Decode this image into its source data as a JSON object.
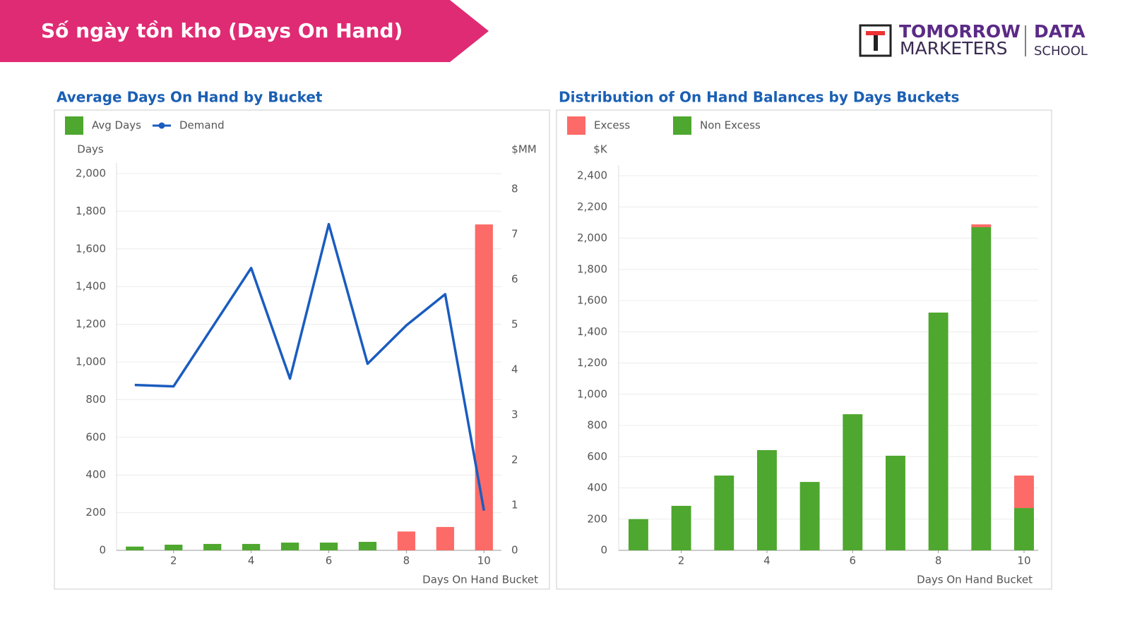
{
  "header": {
    "title": "Số ngày tồn kho (Days On Hand)",
    "logo": [
      "TOMORROW",
      "MARKETERS",
      "DATA",
      "SCHOOL"
    ]
  },
  "chart_data": [
    {
      "type": "combo",
      "title": "Average Days On Hand by Bucket",
      "y_label": "Days",
      "y2_label": "$MM",
      "x_label": "Days On Hand Bucket",
      "x": [
        1,
        2,
        3,
        4,
        5,
        6,
        7,
        8,
        9,
        10
      ],
      "xlim": [
        0.53,
        10.45
      ],
      "xticks": [
        2,
        4,
        6,
        8,
        10
      ],
      "ylim": [
        0,
        2000
      ],
      "yticks": [
        0,
        200,
        400,
        600,
        800,
        {
          "value": 1000,
          "label": "1,000"
        },
        {
          "value": 1200,
          "label": "1,200"
        },
        {
          "value": 1400,
          "label": "1,400"
        },
        {
          "value": 1600,
          "label": "1,600"
        },
        {
          "value": 1800,
          "label": "1,800"
        },
        {
          "value": 2000,
          "label": "2,000"
        }
      ],
      "y2lim": [
        0,
        8.34
      ],
      "y2ticks": [
        0,
        1,
        2,
        3,
        4,
        5,
        6,
        7,
        8
      ],
      "grid": true,
      "series": [
        {
          "name": "Avg Days",
          "type": "bar",
          "color": "#4ea72e",
          "colors": [
            "#4ea72e",
            "#4ea72e",
            "#4ea72e",
            "#4ea72e",
            "#4ea72e",
            "#4ea72e",
            "#4ea72e",
            "#fc6b67",
            "#fc6b67",
            "#fc6b67"
          ],
          "values": [
            20,
            30,
            34,
            34,
            41,
            41,
            45,
            100,
            124,
            1730
          ]
        },
        {
          "name": "Demand",
          "type": "line",
          "axis": "y2",
          "color": "#1a5cbf",
          "values": [
            3.66,
            3.63,
            4.94,
            6.25,
            3.8,
            7.22,
            4.13,
            4.98,
            5.67,
            0.88
          ]
        }
      ]
    },
    {
      "type": "stacked_bar",
      "title": "Distribution of On Hand Balances by Days Buckets",
      "y_label": "$K",
      "x_label": "Days On Hand Bucket",
      "x": [
        1,
        2,
        3,
        4,
        5,
        6,
        7,
        8,
        9,
        10
      ],
      "xlim": [
        0.54,
        10.33
      ],
      "xticks": [
        2,
        4,
        6,
        8,
        10
      ],
      "ylim": [
        0,
        2400
      ],
      "yticks": [
        0,
        200,
        400,
        600,
        800,
        {
          "value": 1000,
          "label": "1,000"
        },
        {
          "value": 1200,
          "label": "1,200"
        },
        {
          "value": 1400,
          "label": "1,400"
        },
        {
          "value": 1600,
          "label": "1,600"
        },
        {
          "value": 1800,
          "label": "1,800"
        },
        {
          "value": 2000,
          "label": "2,000"
        },
        {
          "value": 2200,
          "label": "2,200"
        },
        {
          "value": 2400,
          "label": "2,400"
        }
      ],
      "grid": true,
      "stack_order": [
        1,
        0
      ],
      "series": [
        {
          "name": "Excess",
          "color": "#fc6b67",
          "values": [
            0,
            0,
            0,
            0,
            0,
            0,
            0,
            0,
            18,
            208
          ]
        },
        {
          "name": "Non Excess",
          "color": "#4ea72e",
          "values": [
            200,
            285,
            479,
            642,
            438,
            872,
            606,
            1523,
            2070,
            271
          ]
        }
      ]
    }
  ]
}
